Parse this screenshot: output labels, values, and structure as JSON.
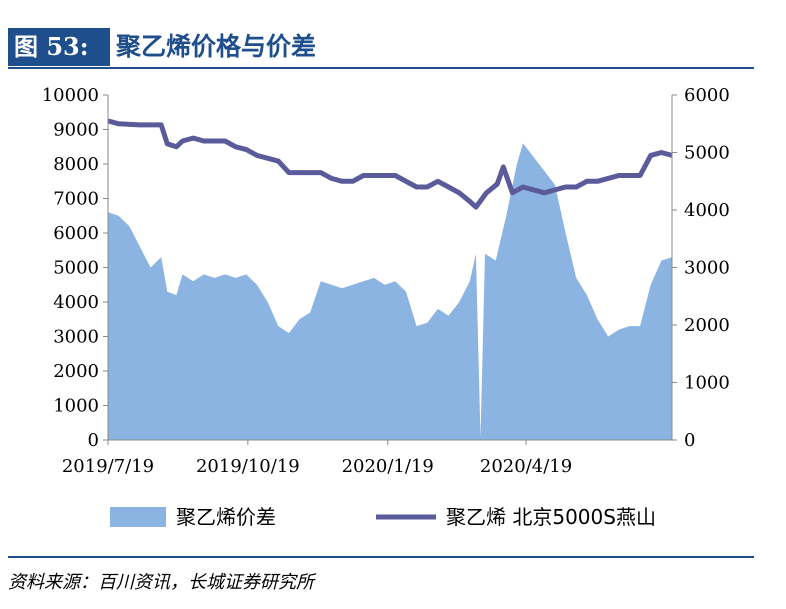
{
  "header": {
    "figure_label": "图 53:",
    "title": "聚乙烯价格与价差"
  },
  "footer": {
    "source": "资料来源：百川资讯，长城证券研究所"
  },
  "colors": {
    "area": "#8cb4e2",
    "line": "#5b5b9b",
    "brand": "#1f4e8c"
  },
  "chart_data": {
    "type": "area+line",
    "title": "聚乙烯价格与价差",
    "x_ticks": [
      "2019/7/19",
      "2019/10/19",
      "2020/1/19",
      "2020/4/19"
    ],
    "y_left": {
      "min": 0,
      "max": 10000,
      "ticks": [
        0,
        1000,
        2000,
        3000,
        4000,
        5000,
        6000,
        7000,
        8000,
        9000,
        10000
      ]
    },
    "y_right": {
      "min": 0,
      "max": 6000,
      "ticks": [
        0,
        1000,
        2000,
        3000,
        4000,
        5000,
        6000
      ]
    },
    "legend_position": "bottom",
    "series": [
      {
        "name": "聚乙烯价差",
        "type": "area",
        "axis": "left",
        "points": [
          [
            "2019-07-19",
            6600
          ],
          [
            "2019-07-26",
            6500
          ],
          [
            "2019-08-02",
            6200
          ],
          [
            "2019-08-09",
            5600
          ],
          [
            "2019-08-16",
            5000
          ],
          [
            "2019-08-23",
            5300
          ],
          [
            "2019-08-27",
            4300
          ],
          [
            "2019-09-02",
            4200
          ],
          [
            "2019-09-06",
            4800
          ],
          [
            "2019-09-13",
            4600
          ],
          [
            "2019-09-20",
            4800
          ],
          [
            "2019-09-27",
            4700
          ],
          [
            "2019-10-04",
            4800
          ],
          [
            "2019-10-11",
            4700
          ],
          [
            "2019-10-18",
            4800
          ],
          [
            "2019-10-25",
            4500
          ],
          [
            "2019-11-01",
            4000
          ],
          [
            "2019-11-08",
            3300
          ],
          [
            "2019-11-15",
            3100
          ],
          [
            "2019-11-22",
            3500
          ],
          [
            "2019-11-29",
            3700
          ],
          [
            "2019-12-06",
            4600
          ],
          [
            "2019-12-13",
            4500
          ],
          [
            "2019-12-20",
            4400
          ],
          [
            "2019-12-27",
            4500
          ],
          [
            "2020-01-03",
            4600
          ],
          [
            "2020-01-10",
            4700
          ],
          [
            "2020-01-17",
            4500
          ],
          [
            "2020-01-24",
            4600
          ],
          [
            "2020-01-31",
            4300
          ],
          [
            "2020-02-07",
            3300
          ],
          [
            "2020-02-14",
            3400
          ],
          [
            "2020-02-21",
            3800
          ],
          [
            "2020-02-28",
            3600
          ],
          [
            "2020-03-06",
            4000
          ],
          [
            "2020-03-13",
            4600
          ],
          [
            "2020-03-17",
            5400
          ],
          [
            "2020-03-20",
            100
          ],
          [
            "2020-03-23",
            5400
          ],
          [
            "2020-03-30",
            5200
          ],
          [
            "2020-04-06",
            6500
          ],
          [
            "2020-04-13",
            8000
          ],
          [
            "2020-04-17",
            8600
          ],
          [
            "2020-04-24",
            8200
          ],
          [
            "2020-05-01",
            7800
          ],
          [
            "2020-05-08",
            7400
          ],
          [
            "2020-05-15",
            6000
          ],
          [
            "2020-05-22",
            4700
          ],
          [
            "2020-05-29",
            4200
          ],
          [
            "2020-06-05",
            3500
          ],
          [
            "2020-06-12",
            3000
          ],
          [
            "2020-06-19",
            3200
          ],
          [
            "2020-06-26",
            3300
          ],
          [
            "2020-07-03",
            3300
          ],
          [
            "2020-07-10",
            4500
          ],
          [
            "2020-07-17",
            5200
          ],
          [
            "2020-07-24",
            5300
          ]
        ]
      },
      {
        "name": "聚乙烯 北京5000S燕山",
        "type": "line",
        "axis": "right",
        "points": [
          [
            "2019-07-19",
            5550
          ],
          [
            "2019-07-26",
            5500
          ],
          [
            "2019-08-09",
            5480
          ],
          [
            "2019-08-23",
            5480
          ],
          [
            "2019-08-27",
            5150
          ],
          [
            "2019-09-02",
            5100
          ],
          [
            "2019-09-06",
            5200
          ],
          [
            "2019-09-13",
            5250
          ],
          [
            "2019-09-20",
            5200
          ],
          [
            "2019-10-04",
            5200
          ],
          [
            "2019-10-11",
            5100
          ],
          [
            "2019-10-18",
            5050
          ],
          [
            "2019-10-25",
            4950
          ],
          [
            "2019-11-08",
            4850
          ],
          [
            "2019-11-15",
            4650
          ],
          [
            "2019-11-22",
            4650
          ],
          [
            "2019-12-06",
            4650
          ],
          [
            "2019-12-13",
            4550
          ],
          [
            "2019-12-20",
            4500
          ],
          [
            "2019-12-27",
            4500
          ],
          [
            "2020-01-03",
            4600
          ],
          [
            "2020-01-10",
            4600
          ],
          [
            "2020-01-17",
            4600
          ],
          [
            "2020-01-24",
            4600
          ],
          [
            "2020-01-31",
            4500
          ],
          [
            "2020-02-07",
            4400
          ],
          [
            "2020-02-14",
            4400
          ],
          [
            "2020-02-21",
            4500
          ],
          [
            "2020-02-28",
            4400
          ],
          [
            "2020-03-06",
            4300
          ],
          [
            "2020-03-13",
            4150
          ],
          [
            "2020-03-17",
            4050
          ],
          [
            "2020-03-24",
            4300
          ],
          [
            "2020-03-31",
            4450
          ],
          [
            "2020-04-04",
            4750
          ],
          [
            "2020-04-10",
            4300
          ],
          [
            "2020-04-17",
            4400
          ],
          [
            "2020-04-24",
            4350
          ],
          [
            "2020-05-01",
            4300
          ],
          [
            "2020-05-08",
            4350
          ],
          [
            "2020-05-15",
            4400
          ],
          [
            "2020-05-22",
            4400
          ],
          [
            "2020-05-29",
            4500
          ],
          [
            "2020-06-05",
            4500
          ],
          [
            "2020-06-12",
            4550
          ],
          [
            "2020-06-19",
            4600
          ],
          [
            "2020-06-26",
            4600
          ],
          [
            "2020-07-03",
            4600
          ],
          [
            "2020-07-10",
            4950
          ],
          [
            "2020-07-17",
            5000
          ],
          [
            "2020-07-24",
            4950
          ]
        ]
      }
    ]
  }
}
